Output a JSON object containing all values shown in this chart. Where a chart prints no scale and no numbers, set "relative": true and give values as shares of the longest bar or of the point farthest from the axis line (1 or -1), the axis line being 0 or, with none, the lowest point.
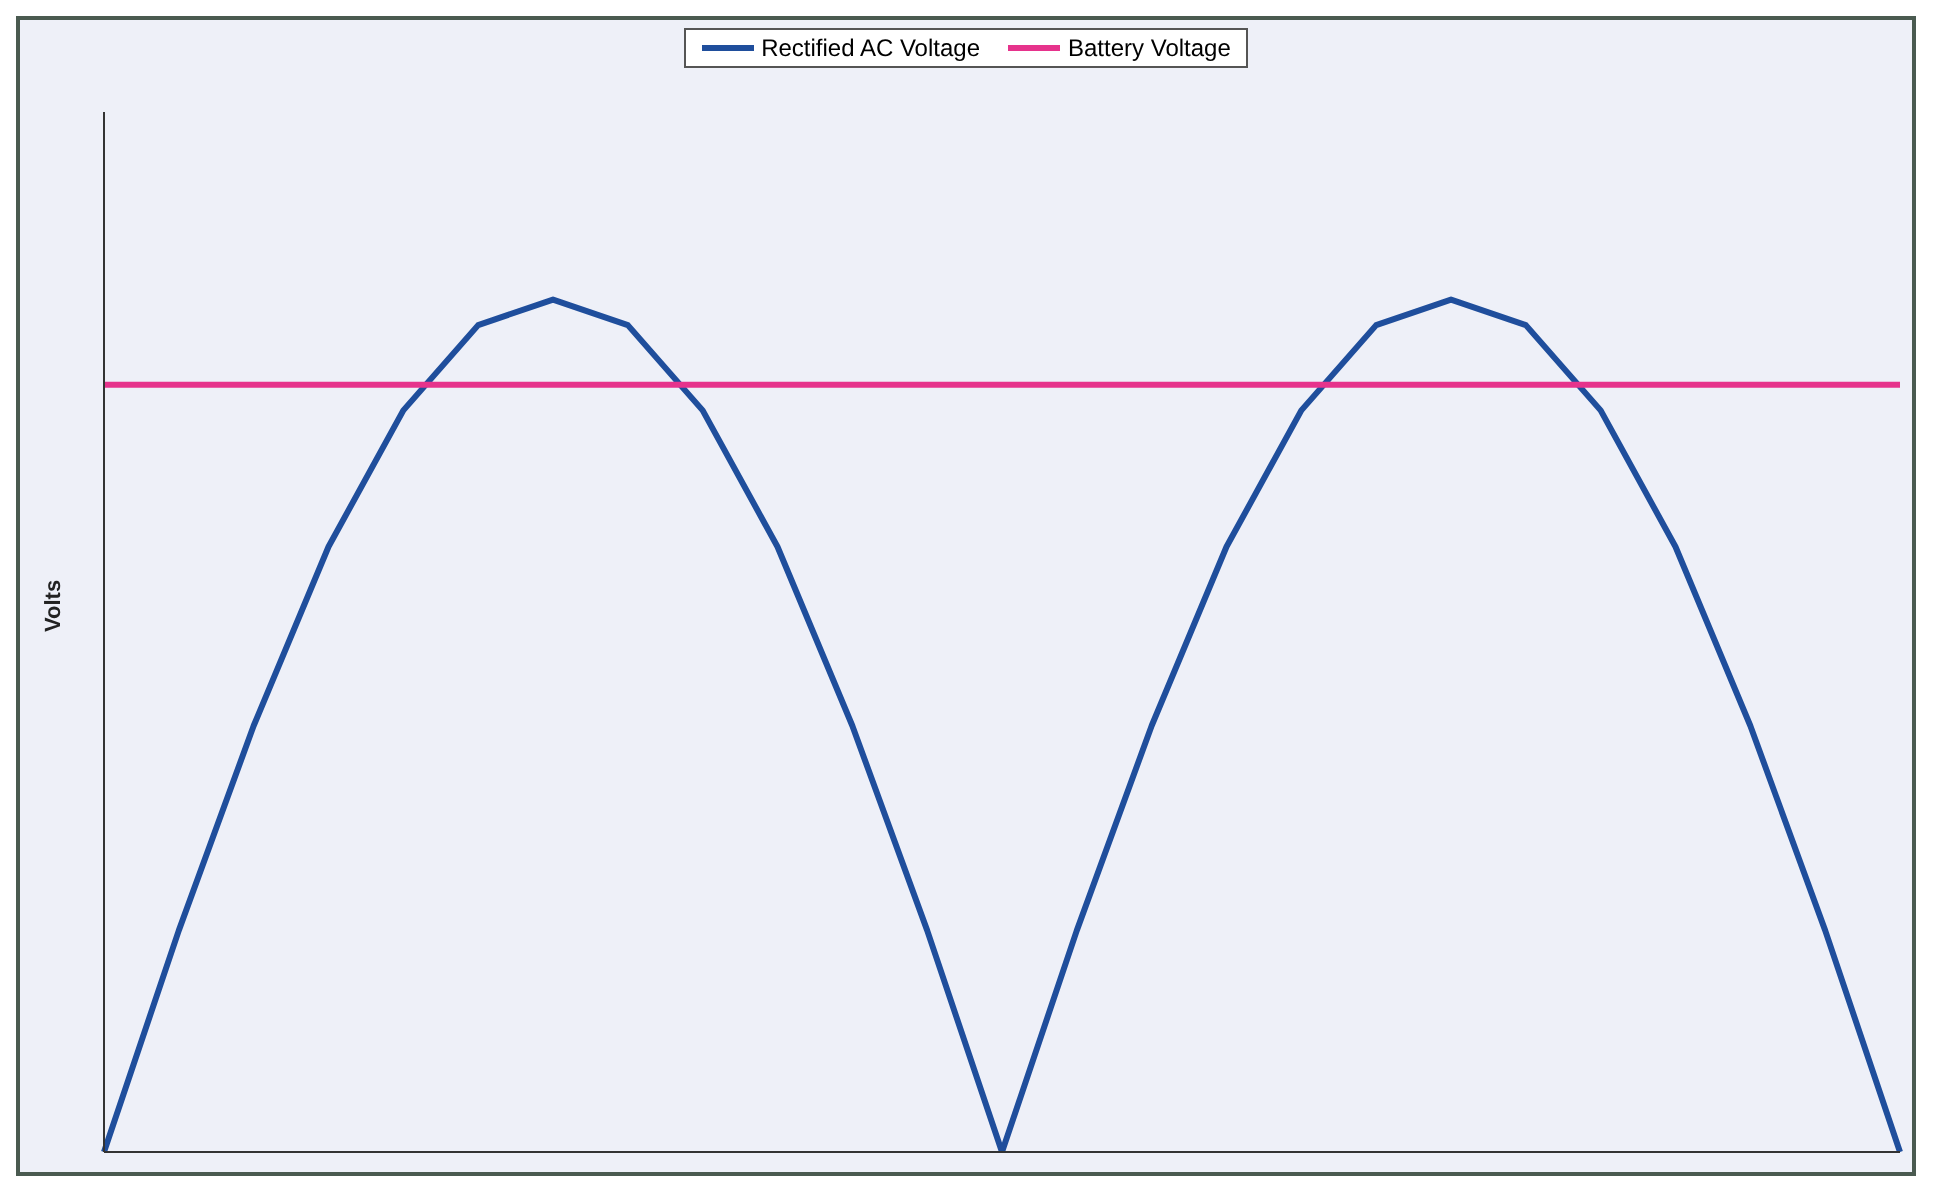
{
  "chart_data": {
    "type": "line",
    "relative": true,
    "ylabel": "Volts",
    "categories": [
      null,
      null,
      null,
      null,
      null,
      null,
      null,
      null,
      null,
      null,
      null,
      null,
      null,
      null,
      null,
      null,
      null,
      null,
      null,
      null,
      null,
      null,
      null,
      null,
      null
    ],
    "series": [
      {
        "name": "Rectified AC Voltage",
        "color": "#1f4e9c",
        "values": [
          0,
          0.26,
          0.5,
          0.71,
          0.87,
          0.97,
          1,
          0.97,
          0.87,
          0.71,
          0.5,
          0.26,
          0,
          0.26,
          0.5,
          0.71,
          0.87,
          0.97,
          1,
          0.97,
          0.87,
          0.71,
          0.5,
          0.26,
          0
        ]
      },
      {
        "name": "Battery Voltage",
        "color": "#e6338c",
        "values": [
          0.9,
          0.9,
          0.9,
          0.9,
          0.9,
          0.9,
          0.9,
          0.9,
          0.9,
          0.9,
          0.9,
          0.9,
          0.9,
          0.9,
          0.9,
          0.9,
          0.9,
          0.9,
          0.9,
          0.9,
          0.9,
          0.9,
          0.9,
          0.9,
          0.9
        ]
      }
    ],
    "legend": "top",
    "grid": false,
    "marker": "none",
    "line_style": "solid"
  }
}
